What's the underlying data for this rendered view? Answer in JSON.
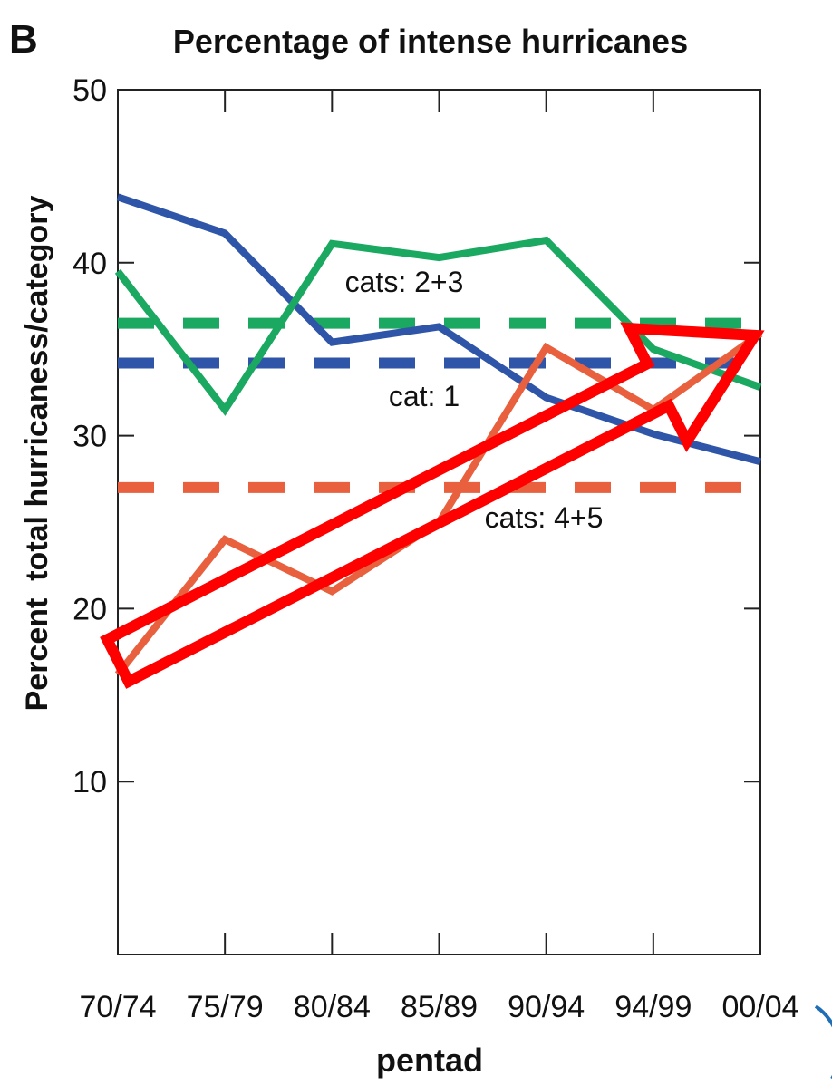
{
  "chart_data": {
    "type": "line",
    "panel_label": "B",
    "title": "Percentage of intense hurricanes",
    "xlabel": "pentad",
    "ylabel": "Percent  total hurricaness/category",
    "categories": [
      "70/74",
      "75/79",
      "80/84",
      "85/89",
      "90/94",
      "94/99",
      "00/04"
    ],
    "ylim": [
      0,
      50
    ],
    "yticks": [
      10,
      20,
      30,
      40,
      50
    ],
    "grid": false,
    "series": [
      {
        "name": "cat: 1",
        "color": "#2f55a8",
        "values": [
          43.8,
          41.7,
          35.4,
          36.3,
          32.2,
          30.1,
          28.5
        ]
      },
      {
        "name": "cats: 2+3",
        "color": "#1ba860",
        "values": [
          39.5,
          31.5,
          41.1,
          40.3,
          41.3,
          35.0,
          32.8
        ]
      },
      {
        "name": "cats: 4+5",
        "color": "#e8603e",
        "values": [
          16.2,
          24.0,
          21.0,
          25.0,
          35.1,
          31.5,
          35.9
        ]
      }
    ],
    "reference_lines": [
      {
        "series": "cats: 2+3",
        "value": 36.5,
        "color": "#1ba860"
      },
      {
        "series": "cat: 1",
        "value": 34.2,
        "color": "#2f55a8"
      },
      {
        "series": "cats: 4+5",
        "value": 27.0,
        "color": "#e8603e"
      }
    ],
    "overlay_arrow": {
      "color": "#ff0000",
      "from": [
        "70/74",
        17
      ],
      "to": [
        "00/04",
        35.8
      ]
    }
  }
}
